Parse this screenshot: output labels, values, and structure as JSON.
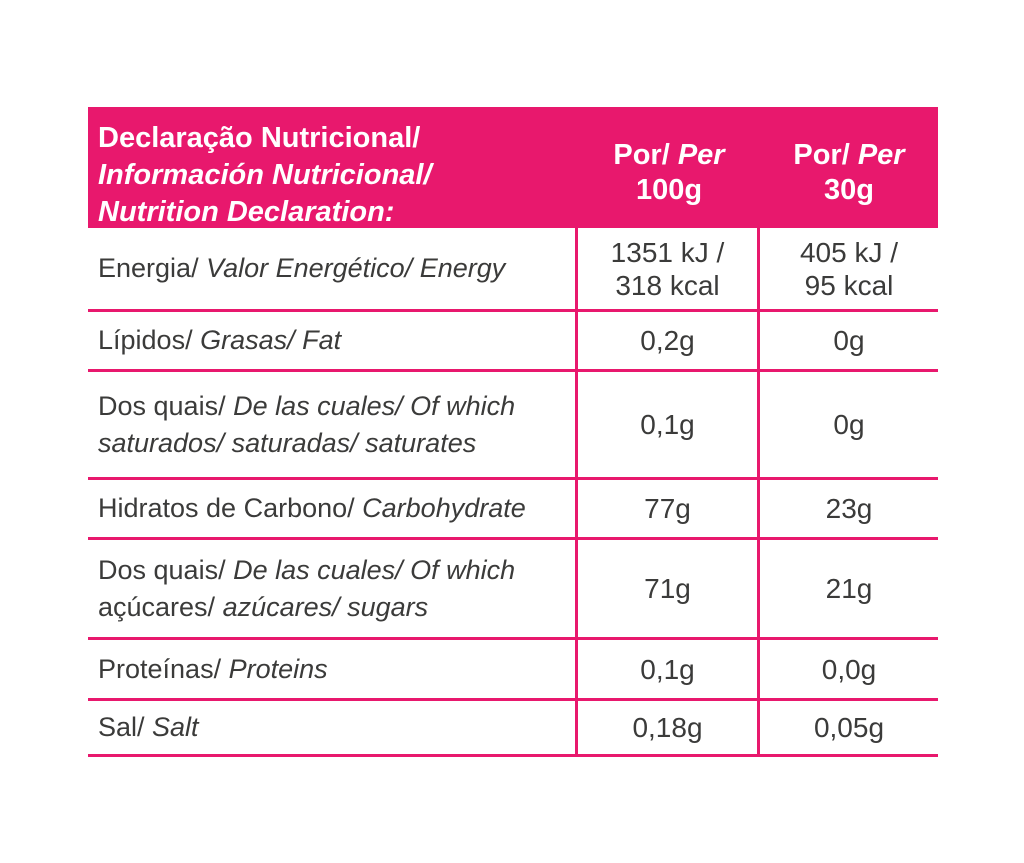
{
  "colors": {
    "pink": "#E8186D",
    "text": "#3B3B3A"
  },
  "header": {
    "title_line1": "Declaração Nutricional/",
    "title_line2": "Información Nutricional/",
    "title_line3": "Nutrition Declaration:",
    "col_100g": {
      "por": "Por/",
      "per": " Per",
      "amount": "100g"
    },
    "col_30g": {
      "por": "Por/",
      "per": " Per",
      "amount": "30g"
    }
  },
  "rows": [
    {
      "l1_regular": "Energia/",
      "l1_italic": " Valor Energético/ Energy",
      "l2_regular": "",
      "l2_italic": "",
      "v100_line1": "1351 kJ /",
      "v100_line2": "318 kcal",
      "v30_line1": "405 kJ /",
      "v30_line2": "95 kcal"
    },
    {
      "l1_regular": "Lípidos/",
      "l1_italic": " Grasas/ Fat",
      "l2_regular": "",
      "l2_italic": "",
      "v100_line1": "0,2g",
      "v100_line2": "",
      "v30_line1": "0g",
      "v30_line2": ""
    },
    {
      "l1_regular": "Dos quais/",
      "l1_italic": " De las cuales/ Of which",
      "l2_regular": "",
      "l2_italic": "saturados/ saturadas/ saturates",
      "v100_line1": "0,1g",
      "v100_line2": "",
      "v30_line1": "0g",
      "v30_line2": ""
    },
    {
      "l1_regular": "Hidratos de Carbono/",
      "l1_italic": " Carbohydrate",
      "l2_regular": "",
      "l2_italic": "",
      "v100_line1": "77g",
      "v100_line2": "",
      "v30_line1": "23g",
      "v30_line2": ""
    },
    {
      "l1_regular": "Dos quais/",
      "l1_italic": " De las cuales/ Of which",
      "l2_regular": "açúcares/",
      "l2_italic": " azúcares/ sugars",
      "v100_line1": "71g",
      "v100_line2": "",
      "v30_line1": "21g",
      "v30_line2": ""
    },
    {
      "l1_regular": "Proteínas/",
      "l1_italic": " Proteins",
      "l2_regular": "",
      "l2_italic": "",
      "v100_line1": "0,1g",
      "v100_line2": "",
      "v30_line1": "0,0g",
      "v30_line2": ""
    },
    {
      "l1_regular": "Sal/",
      "l1_italic": " Salt",
      "l2_regular": "",
      "l2_italic": "",
      "v100_line1": "0,18g",
      "v100_line2": "",
      "v30_line1": "0,05g",
      "v30_line2": ""
    }
  ]
}
